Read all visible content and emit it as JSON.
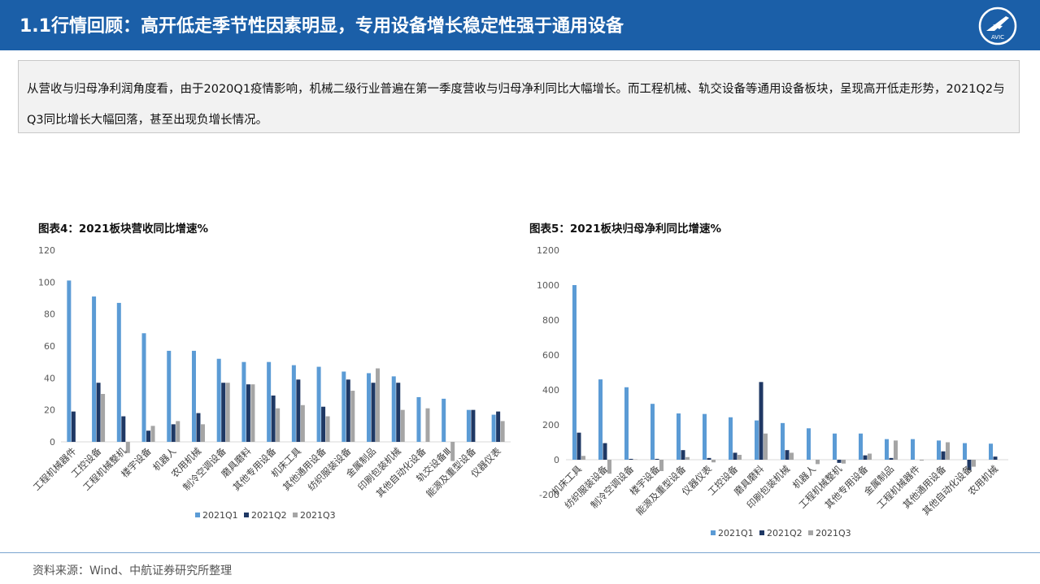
{
  "header": {
    "title": "1.1行情回顾：高开低走季节性因素明显，专用设备增长稳定性强于通用设备",
    "logo_text": "AVIC"
  },
  "summary": {
    "text": "从营收与归母净利润角度看，由于2020Q1疫情影响，机械二级行业普遍在第一季度营收与归母净利同比大幅增长。而工程机械、轨交设备等通用设备板块，呈现高开低走形势，2021Q2与Q3同比增长大幅回落，甚至出现负增长情况。"
  },
  "footer": {
    "source": "资料来源：Wind、中航证券研究所整理"
  },
  "colors": {
    "q1": "#5b9bd5",
    "q2": "#1f3864",
    "q3": "#a5a5a5",
    "header": "#1b5fa8"
  },
  "chart_data": [
    {
      "type": "bar",
      "title": "图表4：2021板块营收同比增速%",
      "categories": [
        "工程机械器件",
        "工控设备",
        "工程机械整机",
        "楼宇设备",
        "机器人",
        "农用机械",
        "制冷空调设备",
        "磨具磨料",
        "其他专用设备",
        "机床工具",
        "其他通用设备",
        "纺织服装设备",
        "金属制品",
        "印刷包装机械",
        "其他自动化设备",
        "轨交设备Ⅲ",
        "能源及重型设备",
        "仪器仪表"
      ],
      "series": [
        {
          "name": "2021Q1",
          "values": [
            101,
            91,
            87,
            68,
            57,
            57,
            52,
            50,
            50,
            48,
            47,
            44,
            43,
            41,
            28,
            27,
            20,
            17
          ]
        },
        {
          "name": "2021Q2",
          "values": [
            19,
            37,
            16,
            7,
            11,
            18,
            37,
            36,
            29,
            39,
            22,
            39,
            37,
            37,
            0,
            0,
            20,
            19
          ]
        },
        {
          "name": "2021Q3",
          "values": [
            0,
            30,
            -7,
            10,
            13,
            11,
            37,
            36,
            21,
            23,
            16,
            32,
            46,
            20,
            21,
            -12,
            0,
            13
          ]
        }
      ],
      "yticks": [
        0,
        20,
        40,
        60,
        80,
        100,
        120
      ],
      "ylim": [
        -8,
        120
      ],
      "legend": "bottom"
    },
    {
      "type": "bar",
      "title": "图表5：2021板块归母净利同比增速%",
      "categories": [
        "机床工具",
        "纺织服装设备",
        "制冷空调设备",
        "楼宇设备",
        "能源及重型设备",
        "仪器仪表",
        "工控设备",
        "磨具磨料",
        "印刷包装机械",
        "机器人",
        "工程机械整机",
        "其他专用设备",
        "金属制品",
        "工程机械器件",
        "其他通用设备",
        "其他自动化设备",
        "农用机械"
      ],
      "series": [
        {
          "name": "2021Q1",
          "values": [
            1000,
            460,
            415,
            320,
            265,
            262,
            243,
            225,
            210,
            180,
            150,
            150,
            118,
            118,
            110,
            95,
            92
          ]
        },
        {
          "name": "2021Q2",
          "values": [
            155,
            95,
            5,
            5,
            55,
            10,
            40,
            445,
            55,
            0,
            -18,
            25,
            10,
            0,
            48,
            -60,
            18
          ]
        },
        {
          "name": "2021Q3",
          "values": [
            22,
            -80,
            2,
            -65,
            15,
            -15,
            28,
            150,
            40,
            -25,
            -22,
            35,
            110,
            -5,
            100,
            -40,
            0
          ]
        }
      ],
      "yticks": [
        -200,
        0,
        200,
        400,
        600,
        800,
        1000,
        1200
      ],
      "ylim": [
        -200,
        1200
      ],
      "legend": "bottom"
    }
  ]
}
